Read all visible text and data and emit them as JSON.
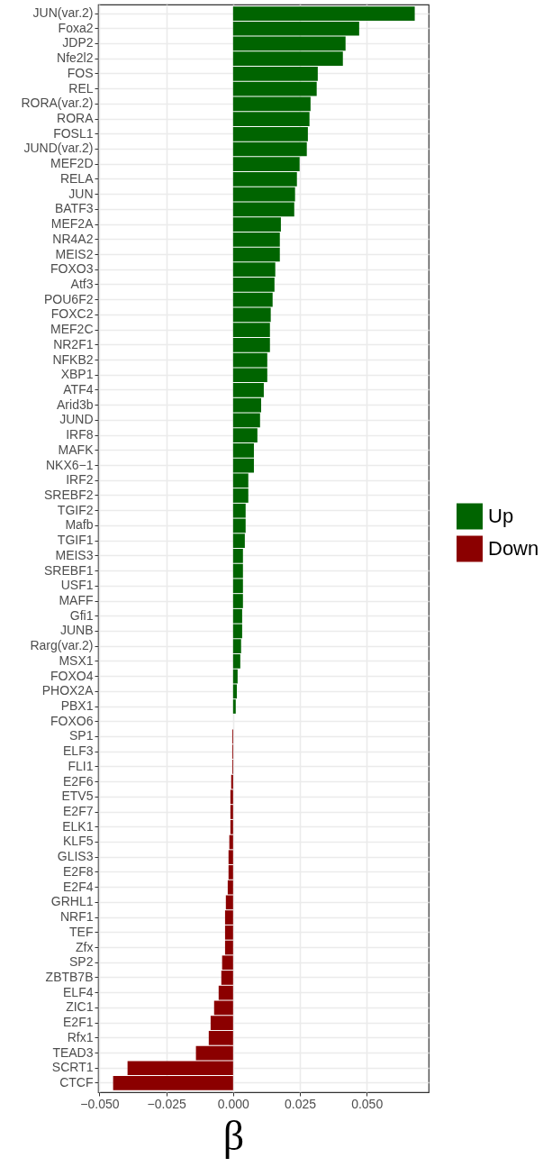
{
  "chart_data": {
    "type": "bar",
    "orientation": "horizontal",
    "xlabel": "β",
    "categories": [
      "JUN(var.2)",
      "Foxa2",
      "JDP2",
      "Nfe2l2",
      "FOS",
      "REL",
      "RORA(var.2)",
      "RORA",
      "FOSL1",
      "JUND(var.2)",
      "MEF2D",
      "RELA",
      "JUN",
      "BATF3",
      "MEF2A",
      "NR4A2",
      "MEIS2",
      "FOXO3",
      "Atf3",
      "POU6F2",
      "FOXC2",
      "MEF2C",
      "NR2F1",
      "NFKB2",
      "XBP1",
      "ATF4",
      "Arid3b",
      "JUND",
      "IRF8",
      "MAFK",
      "NKX6−1",
      "IRF2",
      "SREBF2",
      "TGIF2",
      "Mafb",
      "TGIF1",
      "MEIS3",
      "SREBF1",
      "USF1",
      "MAFF",
      "Gfi1",
      "JUNB",
      "Rarg(var.2)",
      "MSX1",
      "FOXO4",
      "PHOX2A",
      "PBX1",
      "FOXO6",
      "SP1",
      "ELF3",
      "FLI1",
      "E2F6",
      "ETV5",
      "E2F7",
      "ELK1",
      "KLF5",
      "GLIS3",
      "E2F8",
      "E2F4",
      "GRHL1",
      "NRF1",
      "TEF",
      "Zfx",
      "SP2",
      "ZBTB7B",
      "ELF4",
      "ZIC1",
      "E2F1",
      "Rfx1",
      "TEAD3",
      "SCRT1",
      "CTCF"
    ],
    "series": [
      {
        "name": "Up",
        "color": "#006400",
        "values": [
          0.068,
          0.0472,
          0.0421,
          0.0411,
          0.0317,
          0.0313,
          0.029,
          0.0286,
          0.028,
          0.0276,
          0.0249,
          0.0239,
          0.0232,
          0.0229,
          0.0179,
          0.0175,
          0.0175,
          0.0158,
          0.0155,
          0.0148,
          0.0141,
          0.0138,
          0.0138,
          0.0128,
          0.0128,
          0.0115,
          0.0105,
          0.0101,
          0.0091,
          0.0078,
          0.0078,
          0.0057,
          0.0057,
          0.0047,
          0.0047,
          0.0044,
          0.0037,
          0.0037,
          0.0037,
          0.0037,
          0.0034,
          0.0034,
          0.003,
          0.0027,
          0.0017,
          0.0014,
          0.001,
          null,
          null,
          null,
          null,
          null,
          null,
          null,
          null,
          null,
          null,
          null,
          null,
          null,
          null,
          null,
          null,
          null,
          null,
          null,
          null,
          null,
          null,
          null,
          null,
          null
        ]
      },
      {
        "name": "Down",
        "color": "#8b0000",
        "values": [
          null,
          null,
          null,
          null,
          null,
          null,
          null,
          null,
          null,
          null,
          null,
          null,
          null,
          null,
          null,
          null,
          null,
          null,
          null,
          null,
          null,
          null,
          null,
          null,
          null,
          null,
          null,
          null,
          null,
          null,
          null,
          null,
          null,
          null,
          null,
          null,
          null,
          null,
          null,
          null,
          null,
          null,
          null,
          null,
          null,
          null,
          null,
          null,
          -0.0003,
          -0.0003,
          -0.0003,
          -0.0007,
          -0.001,
          -0.001,
          -0.001,
          -0.0014,
          -0.0017,
          -0.0017,
          -0.002,
          -0.0027,
          -0.003,
          -0.003,
          -0.003,
          -0.0041,
          -0.0044,
          -0.0054,
          -0.0071,
          -0.0084,
          -0.0091,
          -0.0139,
          -0.0395,
          -0.0449
        ]
      }
    ],
    "xlim": [
      -0.0505,
      0.0732
    ],
    "xticks": [
      {
        "value": -0.05,
        "label": "−0.050"
      },
      {
        "value": -0.025,
        "label": "−0.025"
      },
      {
        "value": 0,
        "label": "0.000"
      },
      {
        "value": 0.025,
        "label": "0.025"
      },
      {
        "value": 0.05,
        "label": "0.050"
      }
    ],
    "grid": true,
    "legend": "right"
  }
}
